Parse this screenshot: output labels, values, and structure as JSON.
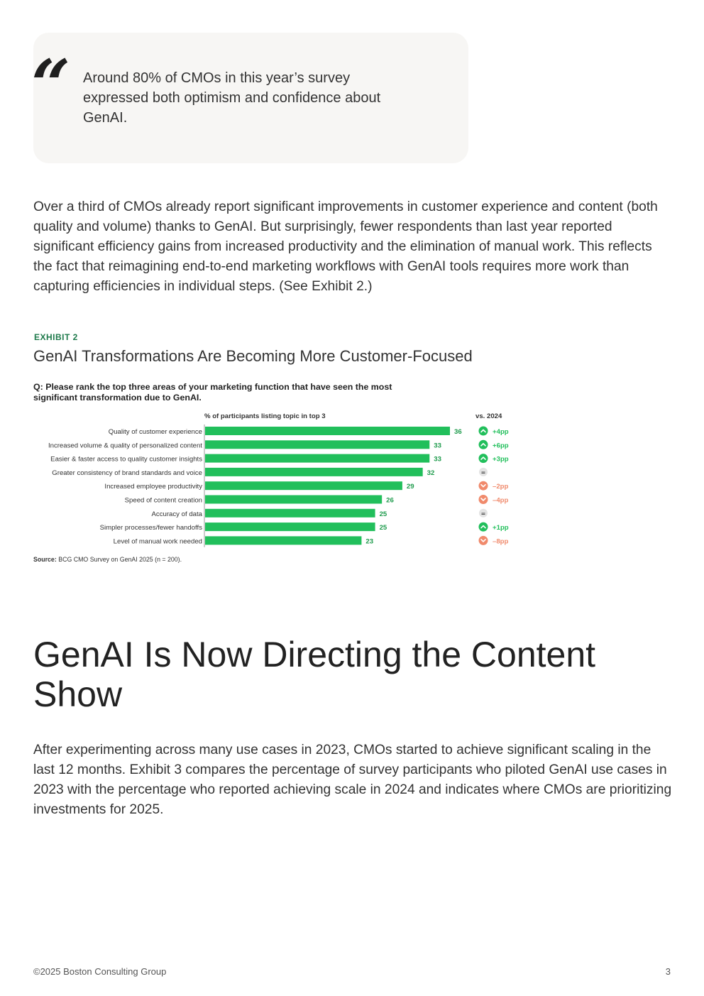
{
  "quote": {
    "mark": "“",
    "text": "Around 80% of CMOs in this year’s survey expressed both optimism and confidence about GenAI."
  },
  "paragraph1": "Over a third of CMOs already report significant improvements in customer experience and content (both quality and volume) thanks to GenAI. But surprisingly, fewer respondents than last year reported significant efficiency gains from increased productivity and the elimination of manual work. This reflects the fact that reimagining end-to-end marketing workflows with GenAI tools requires more work than capturing efficiencies in individual steps. (See Exhibit 2.)",
  "exhibit": {
    "label": "EXHIBIT 2",
    "title": "GenAI Transformations Are Becoming More Customer-Focused",
    "question": "Q: Please rank the top three areas of your marketing function that have seen the most significant transformation due to GenAI.",
    "source_label": "Source:",
    "source_text": "BCG CMO Survey on GenAI 2025 (n = 200)."
  },
  "chart_data": {
    "type": "bar",
    "orientation": "horizontal",
    "xlabel": "% of participants listing topic in top 3",
    "change_header": "vs. 2024",
    "categories": [
      "Quality of customer experience",
      "Increased volume & quality of personalized content",
      "Easier & faster access to quality customer insights",
      "Greater consistency of brand standards and voice",
      "Increased employee productivity",
      "Speed of content creation",
      "Accuracy of data",
      "Simpler processes/fewer handoffs",
      "Level of manual work needed"
    ],
    "values": [
      36,
      33,
      33,
      32,
      29,
      26,
      25,
      25,
      23
    ],
    "changes": [
      "+4pp",
      "+6pp",
      "+3pp",
      "=",
      "–2pp",
      "–4pp",
      "=",
      "+1pp",
      "–8pp"
    ],
    "change_direction": [
      "up",
      "up",
      "up",
      "same",
      "down",
      "down",
      "same",
      "up",
      "down"
    ],
    "xlim": [
      0,
      40
    ],
    "colors": {
      "bar": "#21bf5b",
      "value_label": "#1e9b4c",
      "up": "#21bf5b",
      "down": "#f08a6c",
      "same": "#e3e3e3"
    }
  },
  "section_title": "GenAI Is Now Directing the Content Show",
  "paragraph2": "After experimenting across many use cases in 2023, CMOs started to achieve significant scaling in the last 12 months. Exhibit 3 compares the percentage of survey participants who piloted GenAI use cases in 2023 with the percentage who reported achieving scale in 2024 and indicates where CMOs are prioritizing investments for 2025.",
  "footer": {
    "copyright": "©2025 Boston Consulting Group",
    "page_number": "3"
  }
}
